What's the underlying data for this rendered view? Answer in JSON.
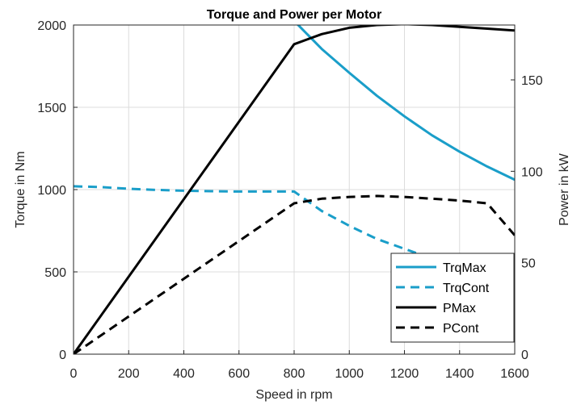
{
  "colors": {
    "blue": "#1a9ec9",
    "black": "#000000",
    "grid": "#dcdcdc",
    "axis": "#262626"
  },
  "chart_data": {
    "type": "line",
    "title": "Torque and Power per Motor",
    "xlabel": "Speed in rpm",
    "ylabel_left": "Torque in Nm",
    "ylabel_right": "Power in kW",
    "xlim": [
      0,
      1600
    ],
    "ylim_left": [
      0,
      2000
    ],
    "ylim_right": [
      0,
      180
    ],
    "x_ticks": [
      "0",
      "200",
      "400",
      "600",
      "800",
      "1000",
      "1200",
      "1400",
      "1600"
    ],
    "y_left_ticks": [
      "0",
      "500",
      "1000",
      "1500",
      "2000"
    ],
    "y_right_ticks": [
      "0",
      "50",
      "100",
      "150"
    ],
    "grid": true,
    "legend_position": "bottom-right",
    "series": [
      {
        "name": "TrqMax",
        "axis": "left",
        "color": "#1a9ec9",
        "style": "solid",
        "x": [
          0,
          200,
          400,
          600,
          800,
          900,
          1000,
          1100,
          1200,
          1300,
          1400,
          1500,
          1600
        ],
        "y": [
          2045,
          2040,
          2035,
          2030,
          2025,
          1855,
          1710,
          1570,
          1445,
          1330,
          1230,
          1140,
          1060
        ]
      },
      {
        "name": "TrqCont",
        "axis": "left",
        "color": "#1a9ec9",
        "style": "dashed",
        "x": [
          0,
          100,
          200,
          300,
          400,
          500,
          600,
          700,
          800,
          900,
          1000,
          1100,
          1200,
          1300,
          1400,
          1500,
          1600
        ],
        "y": [
          1020,
          1015,
          1005,
          998,
          993,
          990,
          988,
          988,
          988,
          870,
          780,
          700,
          640,
          580,
          530,
          460,
          380
        ]
      },
      {
        "name": "PMax",
        "axis": "right",
        "color": "#000000",
        "style": "solid",
        "x": [
          0,
          800,
          900,
          1000,
          1100,
          1200,
          1300,
          1400,
          1500,
          1600
        ],
        "y": [
          0,
          169.5,
          175,
          178.5,
          180,
          180.5,
          180,
          179,
          178,
          177
        ]
      },
      {
        "name": "PCont",
        "axis": "right",
        "color": "#000000",
        "style": "dashed",
        "x": [
          0,
          800,
          900,
          1000,
          1100,
          1200,
          1300,
          1400,
          1500,
          1600
        ],
        "y": [
          0,
          82.5,
          85,
          86,
          86.5,
          86,
          85,
          84,
          82.5,
          65
        ]
      }
    ]
  }
}
